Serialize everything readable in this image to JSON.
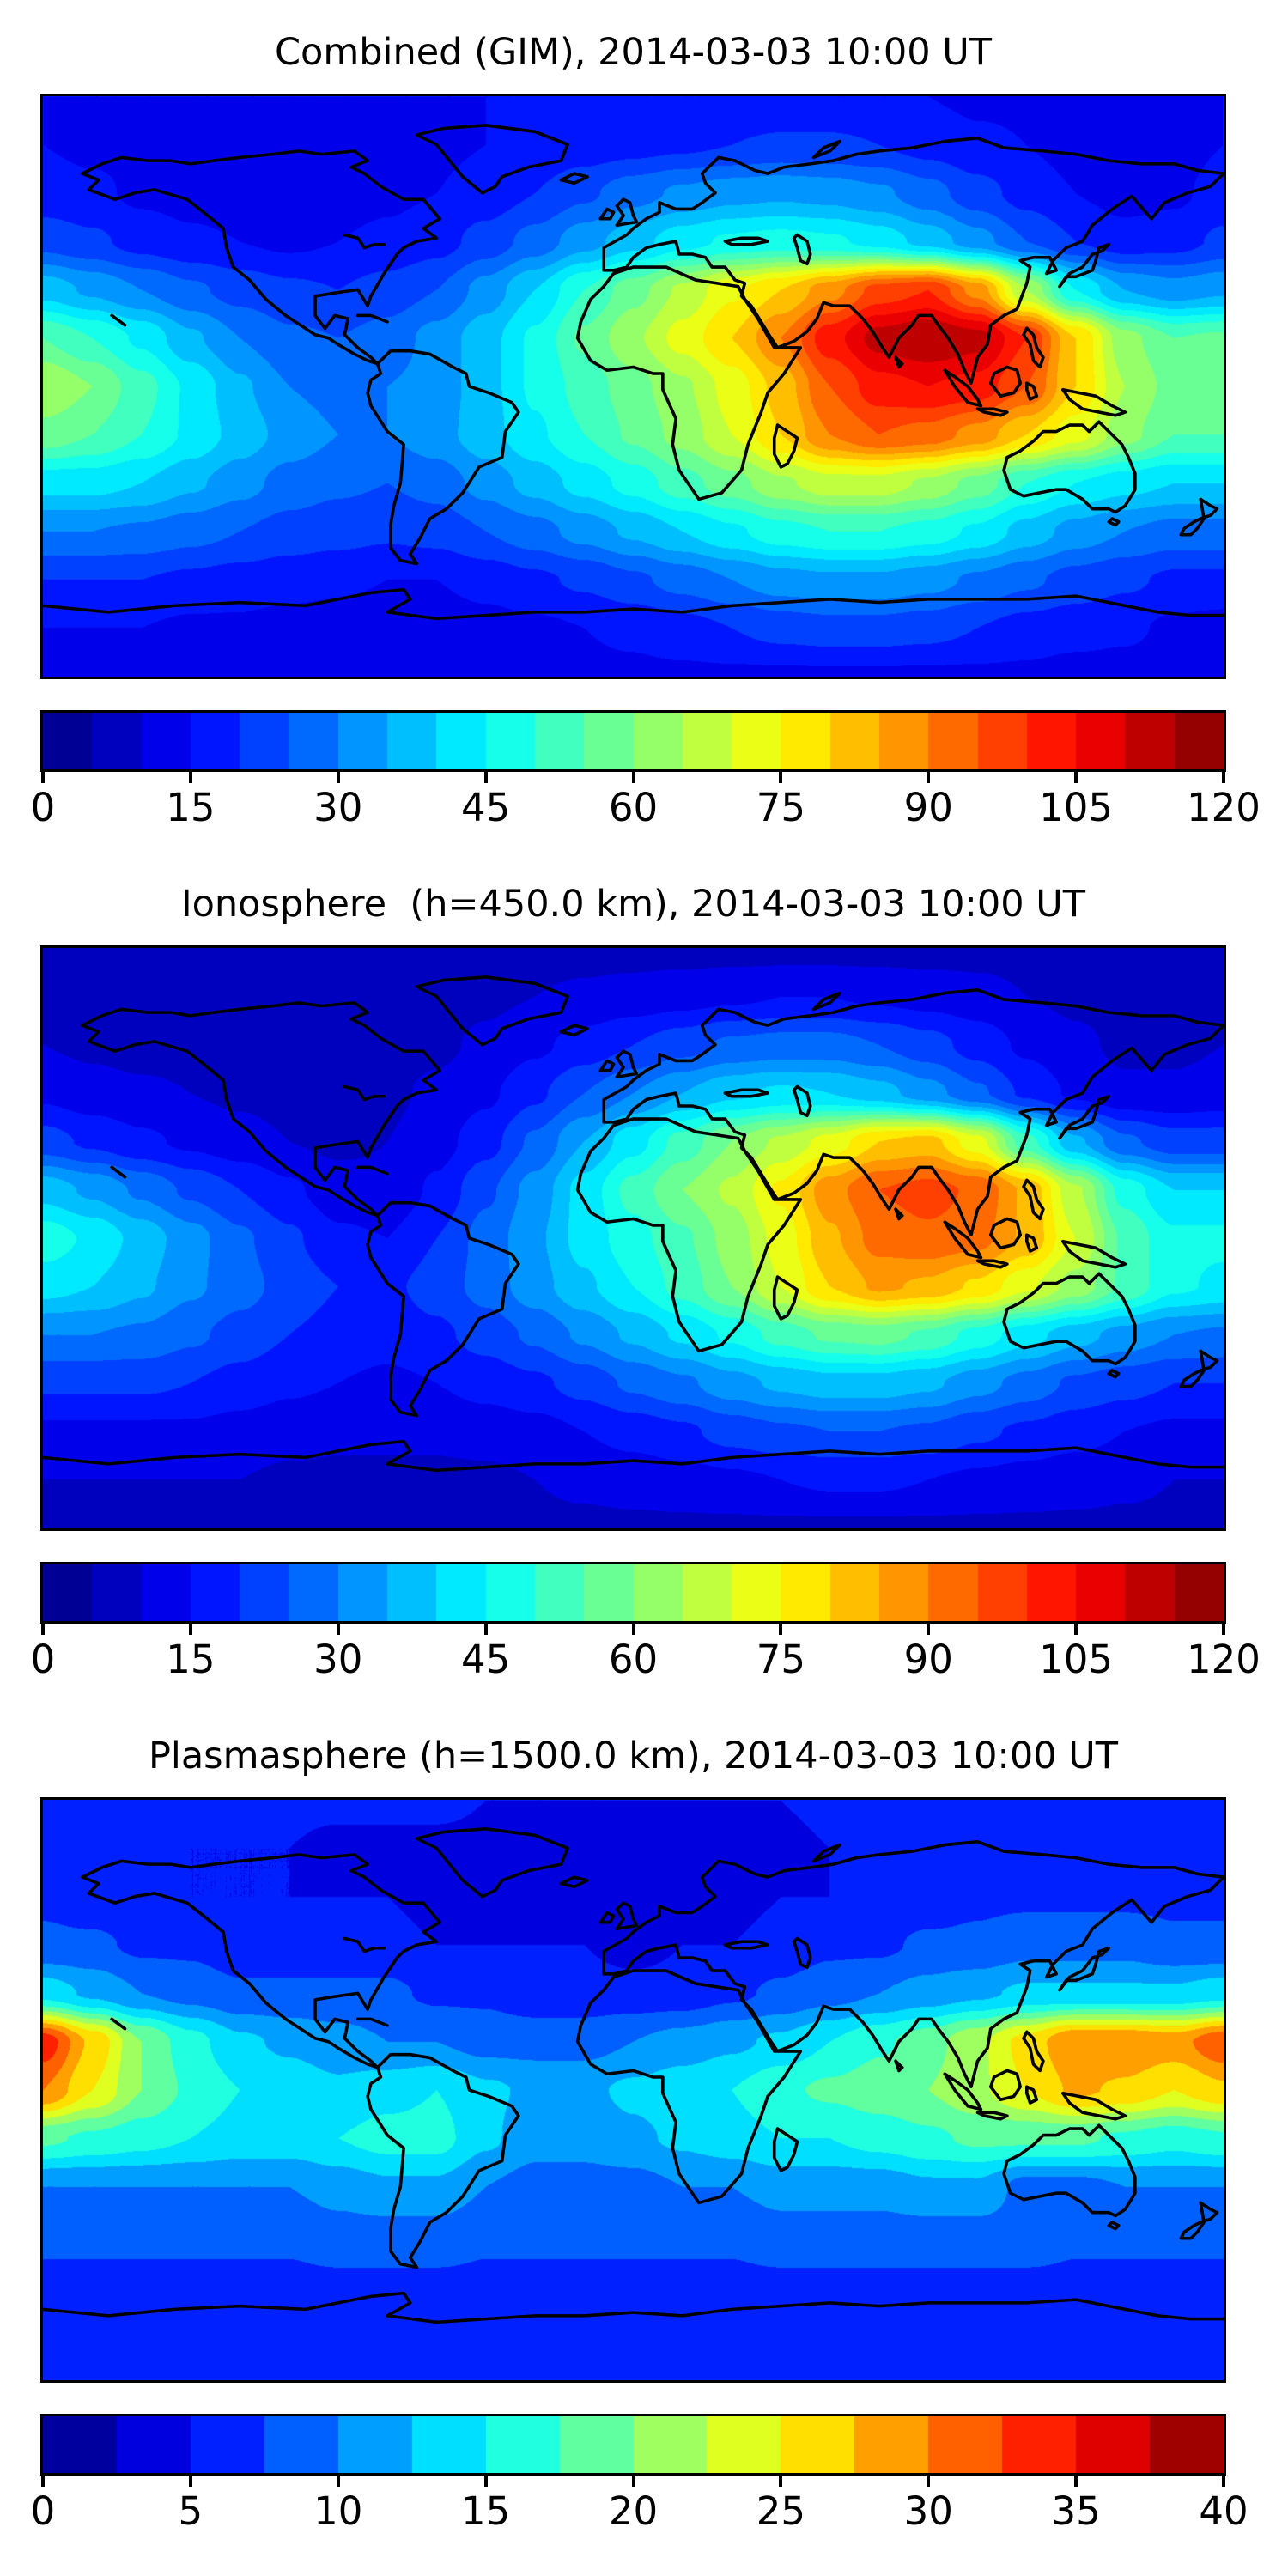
{
  "figure": {
    "background": "#ffffff",
    "n_panels": 3,
    "colormap": "jet",
    "coastline_color": "#000000"
  },
  "chart_data": [
    {
      "type": "heatmap",
      "title": "Combined (GIM), 2014-03-03 10:00 UT",
      "map": "world equirectangular, lon -180..180, lat 90..-90, coastlines drawn in black",
      "colormap": "jet",
      "levels": {
        "min": 0,
        "max": 120,
        "step": 5
      },
      "colorbar_ticks": [
        0,
        15,
        30,
        45,
        60,
        75,
        90,
        105,
        120
      ],
      "legend_position": "horizontal colorbar below map",
      "grid": {
        "lon_start": -180,
        "lon_step": 15,
        "lat_start": 90,
        "lat_step": -15
      },
      "values": [
        [
          15,
          15,
          15,
          15,
          15,
          15,
          15,
          15,
          15,
          15,
          15,
          15,
          15,
          15,
          15,
          15,
          15,
          15,
          15,
          14,
          14,
          14,
          14,
          14,
          15
        ],
        [
          15,
          14,
          14,
          13,
          13,
          12,
          12,
          13,
          14,
          15,
          16,
          17,
          18,
          19,
          20,
          21,
          21,
          20,
          18,
          16,
          15,
          13,
          13,
          13,
          15
        ],
        [
          17,
          16,
          14,
          13,
          12,
          12,
          13,
          14,
          15,
          17,
          20,
          24,
          28,
          31,
          33,
          34,
          33,
          31,
          27,
          22,
          18,
          15,
          13,
          14,
          17
        ],
        [
          23,
          21,
          18,
          16,
          15,
          14,
          15,
          16,
          18,
          22,
          27,
          33,
          38,
          43,
          46,
          47,
          46,
          43,
          38,
          32,
          25,
          20,
          17,
          18,
          21
        ],
        [
          38,
          34,
          30,
          26,
          23,
          21,
          20,
          22,
          25,
          32,
          40,
          50,
          58,
          66,
          74,
          80,
          88,
          97,
          100,
          88,
          65,
          45,
          35,
          32,
          34
        ],
        [
          55,
          50,
          44,
          36,
          30,
          26,
          25,
          27,
          32,
          38,
          46,
          56,
          64,
          72,
          80,
          90,
          103,
          112,
          115,
          112,
          100,
          80,
          62,
          55,
          56
        ],
        [
          65,
          60,
          52,
          44,
          36,
          30,
          28,
          30,
          32,
          38,
          46,
          52,
          58,
          64,
          72,
          82,
          95,
          103,
          105,
          103,
          95,
          80,
          65,
          58,
          60
        ],
        [
          58,
          55,
          50,
          44,
          38,
          33,
          30,
          30,
          33,
          38,
          44,
          50,
          56,
          62,
          70,
          80,
          90,
          95,
          93,
          88,
          80,
          72,
          62,
          55,
          55
        ],
        [
          42,
          42,
          40,
          36,
          32,
          28,
          26,
          25,
          27,
          32,
          37,
          42,
          47,
          53,
          58,
          64,
          68,
          68,
          64,
          58,
          50,
          45,
          42,
          40,
          40
        ],
        [
          30,
          30,
          29,
          27,
          25,
          23,
          22,
          21,
          22,
          25,
          28,
          32,
          36,
          40,
          44,
          48,
          50,
          50,
          48,
          44,
          38,
          33,
          30,
          28,
          28
        ],
        [
          20,
          20,
          20,
          19,
          18,
          17,
          16,
          15,
          15,
          17,
          19,
          21,
          24,
          27,
          30,
          33,
          34,
          34,
          32,
          29,
          26,
          23,
          21,
          19,
          19
        ],
        [
          15,
          15,
          15,
          14,
          14,
          13,
          13,
          12,
          12,
          13,
          14,
          15,
          16,
          18,
          20,
          22,
          23,
          23,
          22,
          20,
          18,
          17,
          16,
          14,
          13
        ],
        [
          14,
          14,
          14,
          14,
          14,
          14,
          14,
          14,
          14,
          14,
          14,
          14,
          14,
          14,
          14,
          14,
          14,
          14,
          14,
          14,
          14,
          13,
          13,
          12,
          12
        ]
      ]
    },
    {
      "type": "heatmap",
      "title": "Ionosphere  (h=450.0 km), 2014-03-03 10:00 UT",
      "map": "world equirectangular, lon -180..180, lat 90..-90, coastlines drawn in black",
      "colormap": "jet",
      "levels": {
        "min": 0,
        "max": 120,
        "step": 5
      },
      "colorbar_ticks": [
        0,
        15,
        30,
        45,
        60,
        75,
        90,
        105,
        120
      ],
      "legend_position": "horizontal colorbar below map",
      "grid": {
        "lon_start": -180,
        "lon_step": 15,
        "lat_start": 90,
        "lat_step": -15
      },
      "values": [
        [
          8,
          8,
          8,
          8,
          8,
          8,
          8,
          8,
          8,
          8,
          8,
          8,
          8,
          8,
          8,
          8,
          8,
          8,
          8,
          8,
          8,
          8,
          8,
          8,
          8
        ],
        [
          8,
          8,
          8,
          7,
          7,
          7,
          7,
          7,
          8,
          9,
          10,
          11,
          12,
          13,
          14,
          15,
          15,
          14,
          13,
          12,
          10,
          9,
          8,
          8,
          8
        ],
        [
          10,
          9,
          8,
          8,
          7,
          7,
          7,
          8,
          9,
          11,
          14,
          17,
          20,
          23,
          26,
          27,
          27,
          25,
          22,
          18,
          14,
          11,
          9,
          9,
          10
        ],
        [
          14,
          12,
          11,
          10,
          9,
          8,
          8,
          9,
          11,
          14,
          19,
          25,
          30,
          35,
          39,
          41,
          40,
          37,
          32,
          26,
          19,
          14,
          11,
          11,
          12
        ],
        [
          22,
          19,
          16,
          14,
          12,
          10,
          9,
          10,
          13,
          18,
          26,
          35,
          43,
          52,
          60,
          66,
          72,
          80,
          82,
          72,
          52,
          36,
          26,
          22,
          22
        ],
        [
          38,
          34,
          29,
          24,
          20,
          16,
          12,
          11,
          16,
          24,
          32,
          42,
          52,
          60,
          66,
          76,
          88,
          95,
          97,
          94,
          84,
          66,
          48,
          40,
          40
        ],
        [
          48,
          44,
          38,
          32,
          26,
          21,
          16,
          15,
          20,
          27,
          34,
          42,
          48,
          54,
          62,
          72,
          84,
          92,
          94,
          92,
          84,
          70,
          54,
          46,
          46
        ],
        [
          42,
          40,
          36,
          31,
          27,
          23,
          20,
          19,
          22,
          27,
          33,
          39,
          45,
          52,
          60,
          70,
          80,
          86,
          84,
          79,
          71,
          63,
          54,
          46,
          44
        ],
        [
          30,
          30,
          29,
          26,
          23,
          20,
          18,
          17,
          19,
          22,
          26,
          31,
          36,
          41,
          46,
          52,
          56,
          57,
          54,
          48,
          42,
          37,
          33,
          30,
          29
        ],
        [
          21,
          21,
          21,
          20,
          18,
          16,
          15,
          14,
          15,
          17,
          19,
          22,
          26,
          29,
          33,
          36,
          38,
          38,
          36,
          32,
          28,
          24,
          22,
          20,
          20
        ],
        [
          14,
          14,
          14,
          14,
          13,
          12,
          11,
          11,
          11,
          12,
          13,
          15,
          17,
          19,
          22,
          24,
          25,
          25,
          24,
          21,
          19,
          17,
          15,
          14,
          14
        ],
        [
          10,
          10,
          10,
          10,
          10,
          9,
          9,
          9,
          9,
          9,
          10,
          11,
          12,
          13,
          14,
          15,
          16,
          16,
          15,
          14,
          13,
          12,
          11,
          10,
          10
        ],
        [
          9,
          9,
          9,
          9,
          9,
          9,
          9,
          9,
          9,
          9,
          9,
          9,
          9,
          9,
          9,
          9,
          9,
          9,
          9,
          9,
          9,
          9,
          9,
          9,
          9
        ]
      ]
    },
    {
      "type": "heatmap",
      "title": "Plasmasphere (h=1500.0 km), 2014-03-03 10:00 UT",
      "map": "world equirectangular, lon -180..180, lat 90..-90, coastlines drawn in black",
      "colormap": "jet",
      "levels": {
        "min": 0,
        "max": 40,
        "step": 2.5
      },
      "colorbar_ticks": [
        0,
        5,
        10,
        15,
        20,
        25,
        30,
        35,
        40
      ],
      "legend_position": "horizontal colorbar below map",
      "grid": {
        "lon_start": -180,
        "lon_step": 15,
        "lat_start": 90,
        "lat_step": -15
      },
      "values": [
        [
          6,
          6,
          6,
          6,
          6,
          6,
          6,
          6,
          6,
          5,
          5,
          5,
          5,
          5,
          5,
          5,
          6,
          6,
          6,
          6,
          6,
          6,
          6,
          6,
          6
        ],
        [
          6,
          6,
          5,
          5,
          5,
          5,
          4,
          4,
          4,
          4,
          4,
          4,
          3.5,
          3.5,
          4,
          4,
          5,
          5,
          6,
          6,
          6,
          6,
          6,
          6,
          6
        ],
        [
          7,
          6,
          6,
          5,
          5,
          5,
          5,
          5,
          4,
          4,
          4,
          4,
          3.5,
          3.5,
          4,
          5,
          5,
          6,
          6,
          7,
          7,
          7,
          7,
          7,
          7
        ],
        [
          8,
          8,
          7,
          7,
          6,
          6,
          6,
          6,
          5,
          5,
          5,
          5,
          4,
          5,
          5,
          6,
          7,
          7,
          8,
          8,
          9,
          9,
          9,
          8,
          8
        ],
        [
          14,
          12,
          10,
          9,
          8,
          8,
          8,
          8,
          7,
          7,
          6,
          6,
          6,
          6,
          7,
          8,
          9,
          10,
          11,
          12,
          13,
          13,
          13,
          13,
          14
        ],
        [
          34,
          27,
          20,
          16,
          13,
          12,
          11,
          10,
          10,
          9,
          9,
          9,
          10,
          11,
          12,
          13,
          15,
          17,
          19,
          22,
          26,
          30,
          30,
          29,
          32
        ],
        [
          30,
          25,
          20,
          17,
          15,
          14,
          13,
          14,
          15,
          13,
          12,
          12,
          13,
          14,
          15,
          17,
          18,
          19,
          20,
          22,
          25,
          28,
          27,
          25,
          27
        ],
        [
          18,
          17,
          16,
          15,
          14,
          14,
          15,
          16,
          16,
          13,
          11,
          11,
          12,
          13,
          14,
          15,
          15,
          16,
          17,
          18,
          18,
          18,
          17,
          16,
          17
        ],
        [
          10,
          10,
          10,
          10,
          10,
          10,
          11,
          12,
          12,
          10,
          9,
          9,
          9,
          10,
          10,
          11,
          11,
          11,
          12,
          12,
          9,
          9,
          10,
          10,
          10
        ],
        [
          8,
          8,
          8,
          8,
          8,
          8,
          9,
          9,
          9,
          8,
          8,
          8,
          8,
          8,
          8,
          9,
          9,
          9,
          9,
          9,
          9,
          8,
          8,
          8,
          8
        ],
        [
          7,
          7,
          7,
          7,
          7,
          7,
          7,
          7,
          7,
          7,
          7,
          7,
          7,
          7,
          7,
          7,
          7,
          7,
          7,
          7,
          7,
          7,
          7,
          7,
          7
        ],
        [
          6,
          6,
          6,
          6,
          6,
          6,
          6,
          6,
          6,
          6,
          6,
          6,
          6,
          6,
          6,
          6,
          6,
          6,
          6,
          6,
          6,
          6,
          6,
          6,
          6
        ],
        [
          6,
          6,
          6,
          6,
          6,
          6,
          6,
          6,
          6,
          6,
          6,
          6,
          6,
          6,
          6,
          6,
          6,
          6,
          6,
          6,
          6,
          6,
          6,
          6,
          6
        ]
      ]
    }
  ]
}
